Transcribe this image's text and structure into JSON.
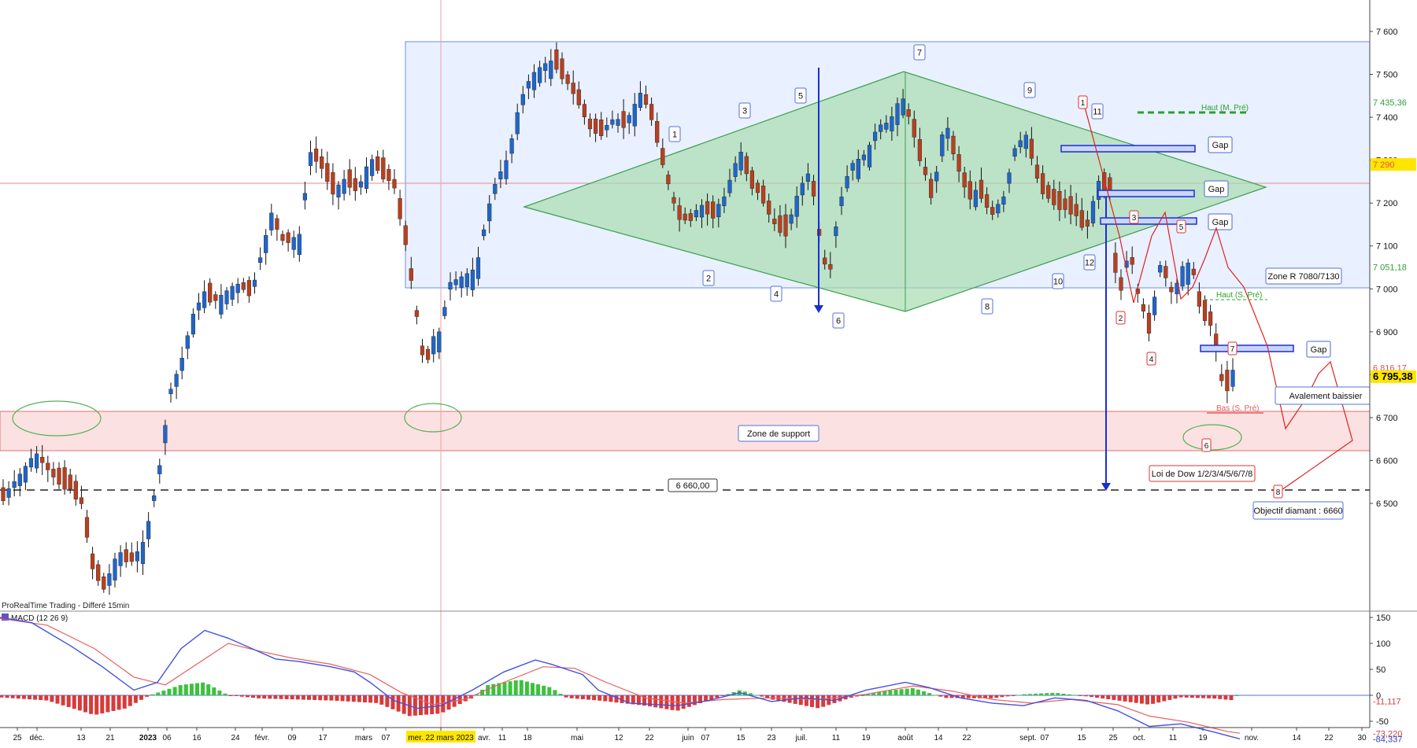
{
  "chart_data": [
    {
      "type": "candlestick",
      "source_label": "ProRealTime Trading - Differé 15min",
      "last_price": "6 795,38",
      "y_axis": {
        "ylim": [
          6420,
          7650
        ],
        "ticks": [
          "7 600",
          "7 500",
          "7 400",
          "7 300",
          "7 200",
          "7 100",
          "7 000",
          "6 900",
          "6 800",
          "6 700",
          "6 600",
          "6 500"
        ],
        "tick_values": [
          7600,
          7500,
          7400,
          7300,
          7200,
          7100,
          7000,
          6900,
          6800,
          6700,
          6600,
          6500
        ]
      },
      "price_markers": [
        {
          "label": "7 435,36",
          "value": 7435.36,
          "color": "#2e9e3a"
        },
        {
          "label": "7 290",
          "value": 7290,
          "color": "#e05050",
          "highlight": "#ffe600"
        },
        {
          "label": "7 051,18",
          "value": 7051.18,
          "color": "#2e9e3a"
        },
        {
          "label": "6 816,17",
          "value": 6816.17,
          "color": "#e05050"
        },
        {
          "label": "6 795,38",
          "value": 6795.38,
          "color": "#000000",
          "highlight": "#ffe600"
        }
      ],
      "x_axis": {
        "labels": [
          "25",
          "déc.",
          "13",
          "21",
          "2023",
          "06",
          "16",
          "24",
          "févr.",
          "09",
          "17",
          "mars",
          "07",
          "mer. 22 mars 2023",
          "avr.",
          "11",
          "18",
          "mai",
          "12",
          "22",
          "juin",
          "07",
          "15",
          "23",
          "juil.",
          "11",
          "19",
          "août",
          "14",
          "22",
          "sept.",
          "07",
          "15",
          "25",
          "oct.",
          "11",
          "19",
          "nov.",
          "14",
          "22",
          "30"
        ],
        "positions": [
          22,
          47,
          103,
          140,
          188,
          212,
          250,
          299,
          333,
          371,
          410,
          462,
          490,
          560,
          615,
          638,
          670,
          733,
          786,
          825,
          874,
          896,
          941,
          980,
          1018,
          1062,
          1100,
          1150,
          1192,
          1228,
          1306,
          1327,
          1374,
          1414,
          1447,
          1490,
          1528,
          1590,
          1647,
          1688,
          1730
        ]
      },
      "candles": [],
      "annotations": {
        "wave_labels_blue": [
          "1",
          "2",
          "3",
          "4",
          "5",
          "6",
          "7",
          "8",
          "9",
          "10",
          "11",
          "12"
        ],
        "wave_labels_red": [
          "1",
          "2",
          "3",
          "4",
          "5",
          "6",
          "7",
          "8"
        ],
        "gap_label": "Gap",
        "zone_resistance": "Zone R 7080/7130",
        "zone_support": "Zone de support",
        "engulfing": "Avalement baissier",
        "dow_theory": "Loi de Dow 1/2/3/4/5/6/7/8",
        "diamond_target": "Objectif diamant : 6660",
        "target_level": "6 660,00",
        "high_month_prev": "Haut (M. Pré)",
        "high_week_prev": "Haut (S. Pré)",
        "low_week_prev": "Bas (S. Pré)"
      }
    },
    {
      "type": "macd",
      "title": "MACD (12 26 9)",
      "ylim": [
        -95,
        165
      ],
      "ticks": [
        "150",
        "100",
        "50",
        "0",
        "-50"
      ],
      "tick_values": [
        150,
        100,
        50,
        0,
        -50
      ],
      "value_labels": [
        {
          "label": "-11,117",
          "value": -11.117,
          "color": "#d04040"
        },
        {
          "label": "-73,220",
          "value": -73.22,
          "color": "#d04040"
        },
        {
          "label": "-84,337",
          "value": -84.337,
          "color": "#2a3fd0"
        }
      ],
      "series": [
        {
          "name": "MACD",
          "color": "#4451e0",
          "values": []
        },
        {
          "name": "Signal",
          "color": "#e86060",
          "values": []
        },
        {
          "name": "Histogram",
          "values": []
        }
      ]
    }
  ],
  "colors": {
    "up": "#1f66c9",
    "down": "#b8401f",
    "wick": "#111111",
    "diamond_fill": "#a8dcb0",
    "diamond_stroke": "#3aa04a",
    "resistance_fill": "#e9f0ff",
    "resistance_stroke": "#6b8fe0",
    "support_fill": "#fbe1e1",
    "support_stroke": "#e07070",
    "blue_line": "#1a2fd0",
    "red_line": "#e02020",
    "hist_up": "#3cc23c",
    "hist_down": "#d83a3a"
  }
}
